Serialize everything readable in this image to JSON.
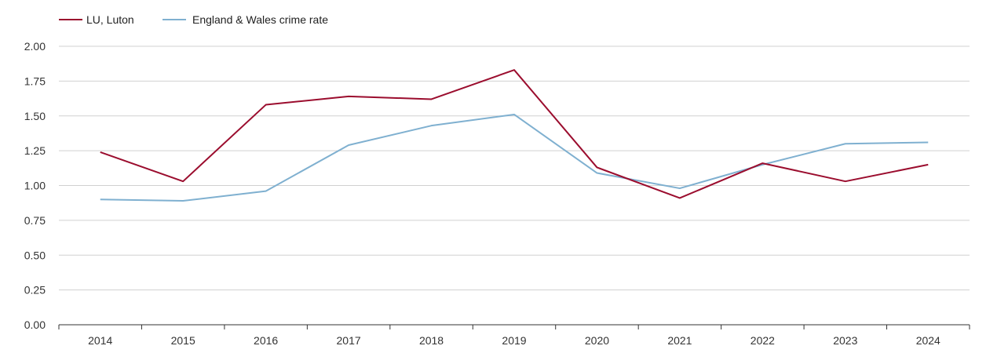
{
  "chart_data": {
    "type": "line",
    "title": "",
    "xlabel": "",
    "ylabel": "",
    "categories": [
      "2014",
      "2015",
      "2016",
      "2017",
      "2018",
      "2019",
      "2020",
      "2021",
      "2022",
      "2023",
      "2024"
    ],
    "ylim": [
      0,
      2
    ],
    "yticks": [
      "0.00",
      "0.25",
      "0.50",
      "0.75",
      "1.00",
      "1.25",
      "1.50",
      "1.75",
      "2.00"
    ],
    "grid": true,
    "legend_position": "top-left",
    "series": [
      {
        "name": "LU, Luton",
        "color": "#9b0d2e",
        "values": [
          1.24,
          1.03,
          1.58,
          1.64,
          1.62,
          1.83,
          1.13,
          0.91,
          1.16,
          1.03,
          1.15
        ]
      },
      {
        "name": "England & Wales crime rate",
        "color": "#7fb0d0",
        "values": [
          0.9,
          0.89,
          0.96,
          1.29,
          1.43,
          1.51,
          1.09,
          0.98,
          1.15,
          1.3,
          1.31
        ]
      }
    ]
  }
}
